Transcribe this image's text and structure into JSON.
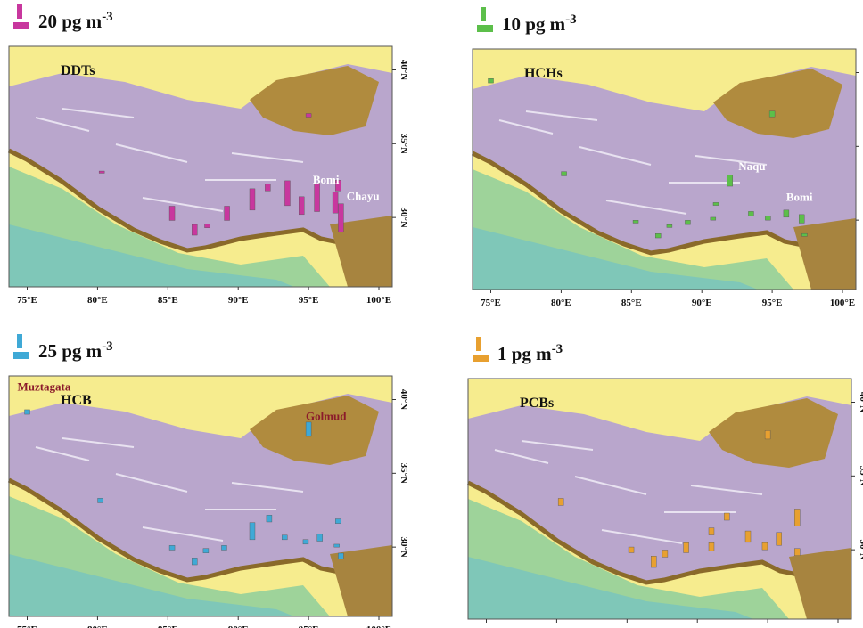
{
  "lon_ticks": [
    {
      "value": 75,
      "label": "75°E"
    },
    {
      "value": 80,
      "label": "80°E"
    },
    {
      "value": 85,
      "label": "85°E"
    },
    {
      "value": 90,
      "label": "90°E"
    },
    {
      "value": 95,
      "label": "95°E"
    },
    {
      "value": 100,
      "label": "100°E"
    }
  ],
  "lat_ticks": [
    {
      "value": 30,
      "label": "30°N"
    },
    {
      "value": 35,
      "label": "35°N"
    },
    {
      "value": 40,
      "label": "40°N"
    }
  ],
  "panels": [
    {
      "title": "DDTs",
      "color": "#c8379e",
      "legend": {
        "value": 20,
        "label": "20 pg m",
        "exponent": "-3"
      },
      "sites": [
        {
          "label": "Bomi",
          "lon": 95.3,
          "lat": 32.3,
          "color": "#ffffff"
        },
        {
          "label": "Chayu",
          "lon": 97.7,
          "lat": 31.2,
          "color": "#ffffff"
        }
      ],
      "bars": [
        {
          "lon": 95,
          "lat": 36.8,
          "value": 5
        },
        {
          "lon": 80.3,
          "lat": 33,
          "value": 3
        },
        {
          "lon": 85.3,
          "lat": 29.8,
          "value": 20
        },
        {
          "lon": 86.9,
          "lat": 28.8,
          "value": 15
        },
        {
          "lon": 87.8,
          "lat": 29.3,
          "value": 5
        },
        {
          "lon": 89.2,
          "lat": 29.8,
          "value": 20
        },
        {
          "lon": 91,
          "lat": 30.5,
          "value": 30
        },
        {
          "lon": 92.1,
          "lat": 31.8,
          "value": 10
        },
        {
          "lon": 93.5,
          "lat": 30.8,
          "value": 35
        },
        {
          "lon": 94.5,
          "lat": 30.2,
          "value": 25
        },
        {
          "lon": 95.6,
          "lat": 30.4,
          "value": 40
        },
        {
          "lon": 96.9,
          "lat": 30.3,
          "value": 30
        },
        {
          "lon": 97.3,
          "lat": 29,
          "value": 40
        },
        {
          "lon": 97.1,
          "lat": 31.8,
          "value": 15
        }
      ]
    },
    {
      "title": "HCHs",
      "color": "#5cbf4a",
      "legend": {
        "value": 10,
        "label": "10 pg m",
        "exponent": "-3"
      },
      "sites": [
        {
          "label": "Naqu",
          "lon": 92.6,
          "lat": 33.4,
          "color": "#ffffff"
        },
        {
          "label": "Bomi",
          "lon": 96,
          "lat": 31.3,
          "color": "#ffffff"
        }
      ],
      "bars": [
        {
          "lon": 75,
          "lat": 39.3,
          "value": 3
        },
        {
          "lon": 80.2,
          "lat": 33,
          "value": 3
        },
        {
          "lon": 85.3,
          "lat": 29.8,
          "value": 2
        },
        {
          "lon": 86.9,
          "lat": 28.8,
          "value": 3
        },
        {
          "lon": 87.7,
          "lat": 29.5,
          "value": 2
        },
        {
          "lon": 89,
          "lat": 29.7,
          "value": 3
        },
        {
          "lon": 90.8,
          "lat": 30,
          "value": 2
        },
        {
          "lon": 91,
          "lat": 31,
          "value": 2
        },
        {
          "lon": 92,
          "lat": 32.3,
          "value": 8
        },
        {
          "lon": 93.5,
          "lat": 30.3,
          "value": 3
        },
        {
          "lon": 94.7,
          "lat": 30,
          "value": 3
        },
        {
          "lon": 96,
          "lat": 30.2,
          "value": 5
        },
        {
          "lon": 95,
          "lat": 37,
          "value": 4
        },
        {
          "lon": 97.1,
          "lat": 29.8,
          "value": 6
        },
        {
          "lon": 97.3,
          "lat": 28.9,
          "value": 2
        }
      ]
    },
    {
      "title": "HCB",
      "color": "#3fa9d6",
      "legend": {
        "value": 25,
        "label": "25 pg m",
        "exponent": "-3"
      },
      "sites": [
        {
          "label": "Muztagata",
          "lon": 74.3,
          "lat": 40.6,
          "color": "#8b1a2b"
        },
        {
          "label": "Golmud",
          "lon": 94.8,
          "lat": 38.6,
          "color": "#8b1a2b"
        }
      ],
      "bars": [
        {
          "lon": 75,
          "lat": 39,
          "value": 8
        },
        {
          "lon": 95,
          "lat": 37.5,
          "value": 25
        },
        {
          "lon": 80.2,
          "lat": 33,
          "value": 8
        },
        {
          "lon": 85.3,
          "lat": 29.8,
          "value": 8
        },
        {
          "lon": 86.9,
          "lat": 28.8,
          "value": 12
        },
        {
          "lon": 87.7,
          "lat": 29.6,
          "value": 8
        },
        {
          "lon": 89,
          "lat": 29.8,
          "value": 8
        },
        {
          "lon": 91,
          "lat": 30.5,
          "value": 30
        },
        {
          "lon": 92.2,
          "lat": 31.7,
          "value": 12
        },
        {
          "lon": 93.3,
          "lat": 30.5,
          "value": 8
        },
        {
          "lon": 94.8,
          "lat": 30.2,
          "value": 8
        },
        {
          "lon": 95.8,
          "lat": 30.4,
          "value": 12
        },
        {
          "lon": 97.1,
          "lat": 31.6,
          "value": 8
        },
        {
          "lon": 97.3,
          "lat": 29.2,
          "value": 10
        },
        {
          "lon": 97,
          "lat": 30,
          "value": 5
        }
      ]
    },
    {
      "title": "PCBs",
      "color": "#e8a030",
      "legend": {
        "value": 1,
        "label": "1 pg m",
        "exponent": "-3"
      },
      "sites": [],
      "bars": [
        {
          "lon": 95,
          "lat": 37.5,
          "value": 0.6
        },
        {
          "lon": 80.3,
          "lat": 33,
          "value": 0.5
        },
        {
          "lon": 85.3,
          "lat": 29.8,
          "value": 0.4
        },
        {
          "lon": 86.9,
          "lat": 28.8,
          "value": 0.8
        },
        {
          "lon": 87.7,
          "lat": 29.5,
          "value": 0.5
        },
        {
          "lon": 89.2,
          "lat": 29.8,
          "value": 0.7
        },
        {
          "lon": 91,
          "lat": 31,
          "value": 0.5
        },
        {
          "lon": 91,
          "lat": 29.9,
          "value": 0.6
        },
        {
          "lon": 92.1,
          "lat": 32,
          "value": 0.5
        },
        {
          "lon": 93.6,
          "lat": 30.5,
          "value": 0.8
        },
        {
          "lon": 94.8,
          "lat": 30,
          "value": 0.5
        },
        {
          "lon": 95.8,
          "lat": 30.3,
          "value": 0.9
        },
        {
          "lon": 97.1,
          "lat": 31.6,
          "value": 1.2
        },
        {
          "lon": 97.1,
          "lat": 29.6,
          "value": 0.5
        }
      ]
    }
  ]
}
